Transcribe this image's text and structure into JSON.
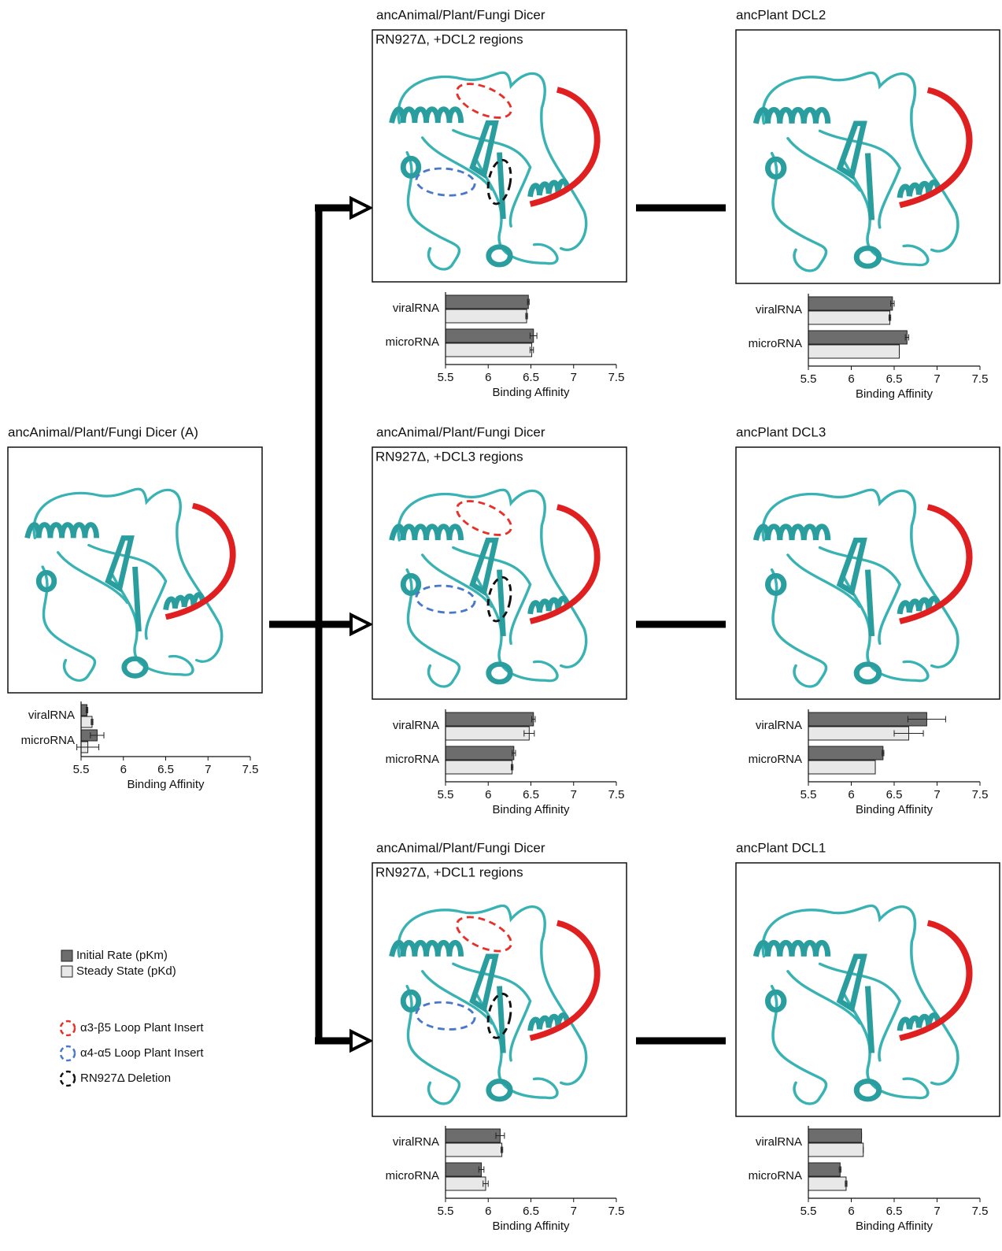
{
  "chart_data": [
    {
      "type": "bar",
      "orientation": "horizontal",
      "title": "ancAnimal/Plant/Fungi Dicer (A)",
      "categories": [
        "viralRNA",
        "microRNA"
      ],
      "series": [
        {
          "name": "Initial Rate (pKm)",
          "color": "#6d6d6d",
          "values": [
            5.57,
            5.69
          ],
          "errors": [
            0.01,
            0.08
          ]
        },
        {
          "name": "Steady State (pKd)",
          "color": "#e8e8e8",
          "values": [
            5.63,
            5.58
          ],
          "errors": [
            0.01,
            0.13
          ]
        }
      ],
      "xlabel": "Binding Affinity",
      "xlim": [
        5.5,
        7.5
      ],
      "xticks": [
        5.5,
        6,
        6.5,
        7,
        7.5
      ]
    },
    {
      "type": "bar",
      "orientation": "horizontal",
      "title": "ancAnimal/Plant/Fungi Dicer",
      "subtitle": "RN927Δ, +DCL2 regions",
      "categories": [
        "viralRNA",
        "microRNA"
      ],
      "series": [
        {
          "name": "Initial Rate (pKm)",
          "color": "#6d6d6d",
          "values": [
            6.47,
            6.53
          ],
          "errors": [
            0.01,
            0.04
          ]
        },
        {
          "name": "Steady State (pKd)",
          "color": "#e8e8e8",
          "values": [
            6.45,
            6.51
          ],
          "errors": [
            0.01,
            0.02
          ]
        }
      ],
      "xlabel": "Binding Affinity",
      "xlim": [
        5.5,
        7.5
      ],
      "xticks": [
        5.5,
        6,
        6.5,
        7,
        7.5
      ]
    },
    {
      "type": "bar",
      "orientation": "horizontal",
      "title": "ancPlant DCL2",
      "categories": [
        "viralRNA",
        "microRNA"
      ],
      "series": [
        {
          "name": "Initial Rate (pKm)",
          "color": "#6d6d6d",
          "values": [
            6.48,
            6.65
          ],
          "errors": [
            0.02,
            0.02
          ]
        },
        {
          "name": "Steady State (pKd)",
          "color": "#e8e8e8",
          "values": [
            6.45,
            6.56
          ],
          "errors": [
            0.01,
            0.0
          ]
        }
      ],
      "xlabel": "Binding Affinity",
      "xlim": [
        5.5,
        7.5
      ],
      "xticks": [
        5.5,
        6,
        6.5,
        7,
        7.5
      ]
    },
    {
      "type": "bar",
      "orientation": "horizontal",
      "title": "ancAnimal/Plant/Fungi Dicer",
      "subtitle": "RN927Δ, +DCL3 regions",
      "categories": [
        "viralRNA",
        "microRNA"
      ],
      "series": [
        {
          "name": "Initial Rate (pKm)",
          "color": "#6d6d6d",
          "values": [
            6.53,
            6.3
          ],
          "errors": [
            0.02,
            0.02
          ]
        },
        {
          "name": "Steady State (pKd)",
          "color": "#e8e8e8",
          "values": [
            6.48,
            6.28
          ],
          "errors": [
            0.06,
            0.01
          ]
        }
      ],
      "xlabel": "Binding Affinity",
      "xlim": [
        5.5,
        7.5
      ],
      "xticks": [
        5.5,
        6,
        6.5,
        7,
        7.5
      ]
    },
    {
      "type": "bar",
      "orientation": "horizontal",
      "title": "ancPlant DCL3",
      "categories": [
        "viralRNA",
        "microRNA"
      ],
      "series": [
        {
          "name": "Initial Rate (pKm)",
          "color": "#6d6d6d",
          "values": [
            6.88,
            6.37
          ],
          "errors": [
            0.22,
            0.01
          ]
        },
        {
          "name": "Steady State (pKd)",
          "color": "#e8e8e8",
          "values": [
            6.67,
            6.28
          ],
          "errors": [
            0.17,
            0.0
          ]
        }
      ],
      "xlabel": "Binding Affinity",
      "xlim": [
        5.5,
        7.5
      ],
      "xticks": [
        5.5,
        6,
        6.5,
        7,
        7.5
      ]
    },
    {
      "type": "bar",
      "orientation": "horizontal",
      "title": "ancAnimal/Plant/Fungi Dicer",
      "subtitle": "RN927Δ, +DCL1 regions",
      "categories": [
        "viralRNA",
        "microRNA"
      ],
      "series": [
        {
          "name": "Initial Rate (pKm)",
          "color": "#6d6d6d",
          "values": [
            6.14,
            5.92
          ],
          "errors": [
            0.05,
            0.03
          ]
        },
        {
          "name": "Steady State (pKd)",
          "color": "#e8e8e8",
          "values": [
            6.16,
            5.97
          ],
          "errors": [
            0.01,
            0.03
          ]
        }
      ],
      "xlabel": "Binding Affinity",
      "xlim": [
        5.5,
        7.5
      ],
      "xticks": [
        5.5,
        6,
        6.5,
        7,
        7.5
      ]
    },
    {
      "type": "bar",
      "orientation": "horizontal",
      "title": "ancPlant DCL1",
      "categories": [
        "viralRNA",
        "microRNA"
      ],
      "series": [
        {
          "name": "Initial Rate (pKm)",
          "color": "#6d6d6d",
          "values": [
            6.12,
            5.87
          ],
          "errors": [
            0.0,
            0.01
          ]
        },
        {
          "name": "Steady State (pKd)",
          "color": "#e8e8e8",
          "values": [
            6.14,
            5.94
          ],
          "errors": [
            0.0,
            0.01
          ]
        }
      ],
      "xlabel": "Binding Affinity",
      "xlim": [
        5.5,
        7.5
      ],
      "xticks": [
        5.5,
        6,
        6.5,
        7,
        7.5
      ]
    }
  ],
  "region_legend": [
    {
      "label": "α3-β5 Loop Plant Insert",
      "color": "#e8302a"
    },
    {
      "label": "α4-α5 Loop Plant Insert",
      "color": "#4a78c8"
    },
    {
      "label": "RN927Δ Deletion",
      "color": "#111111"
    }
  ]
}
